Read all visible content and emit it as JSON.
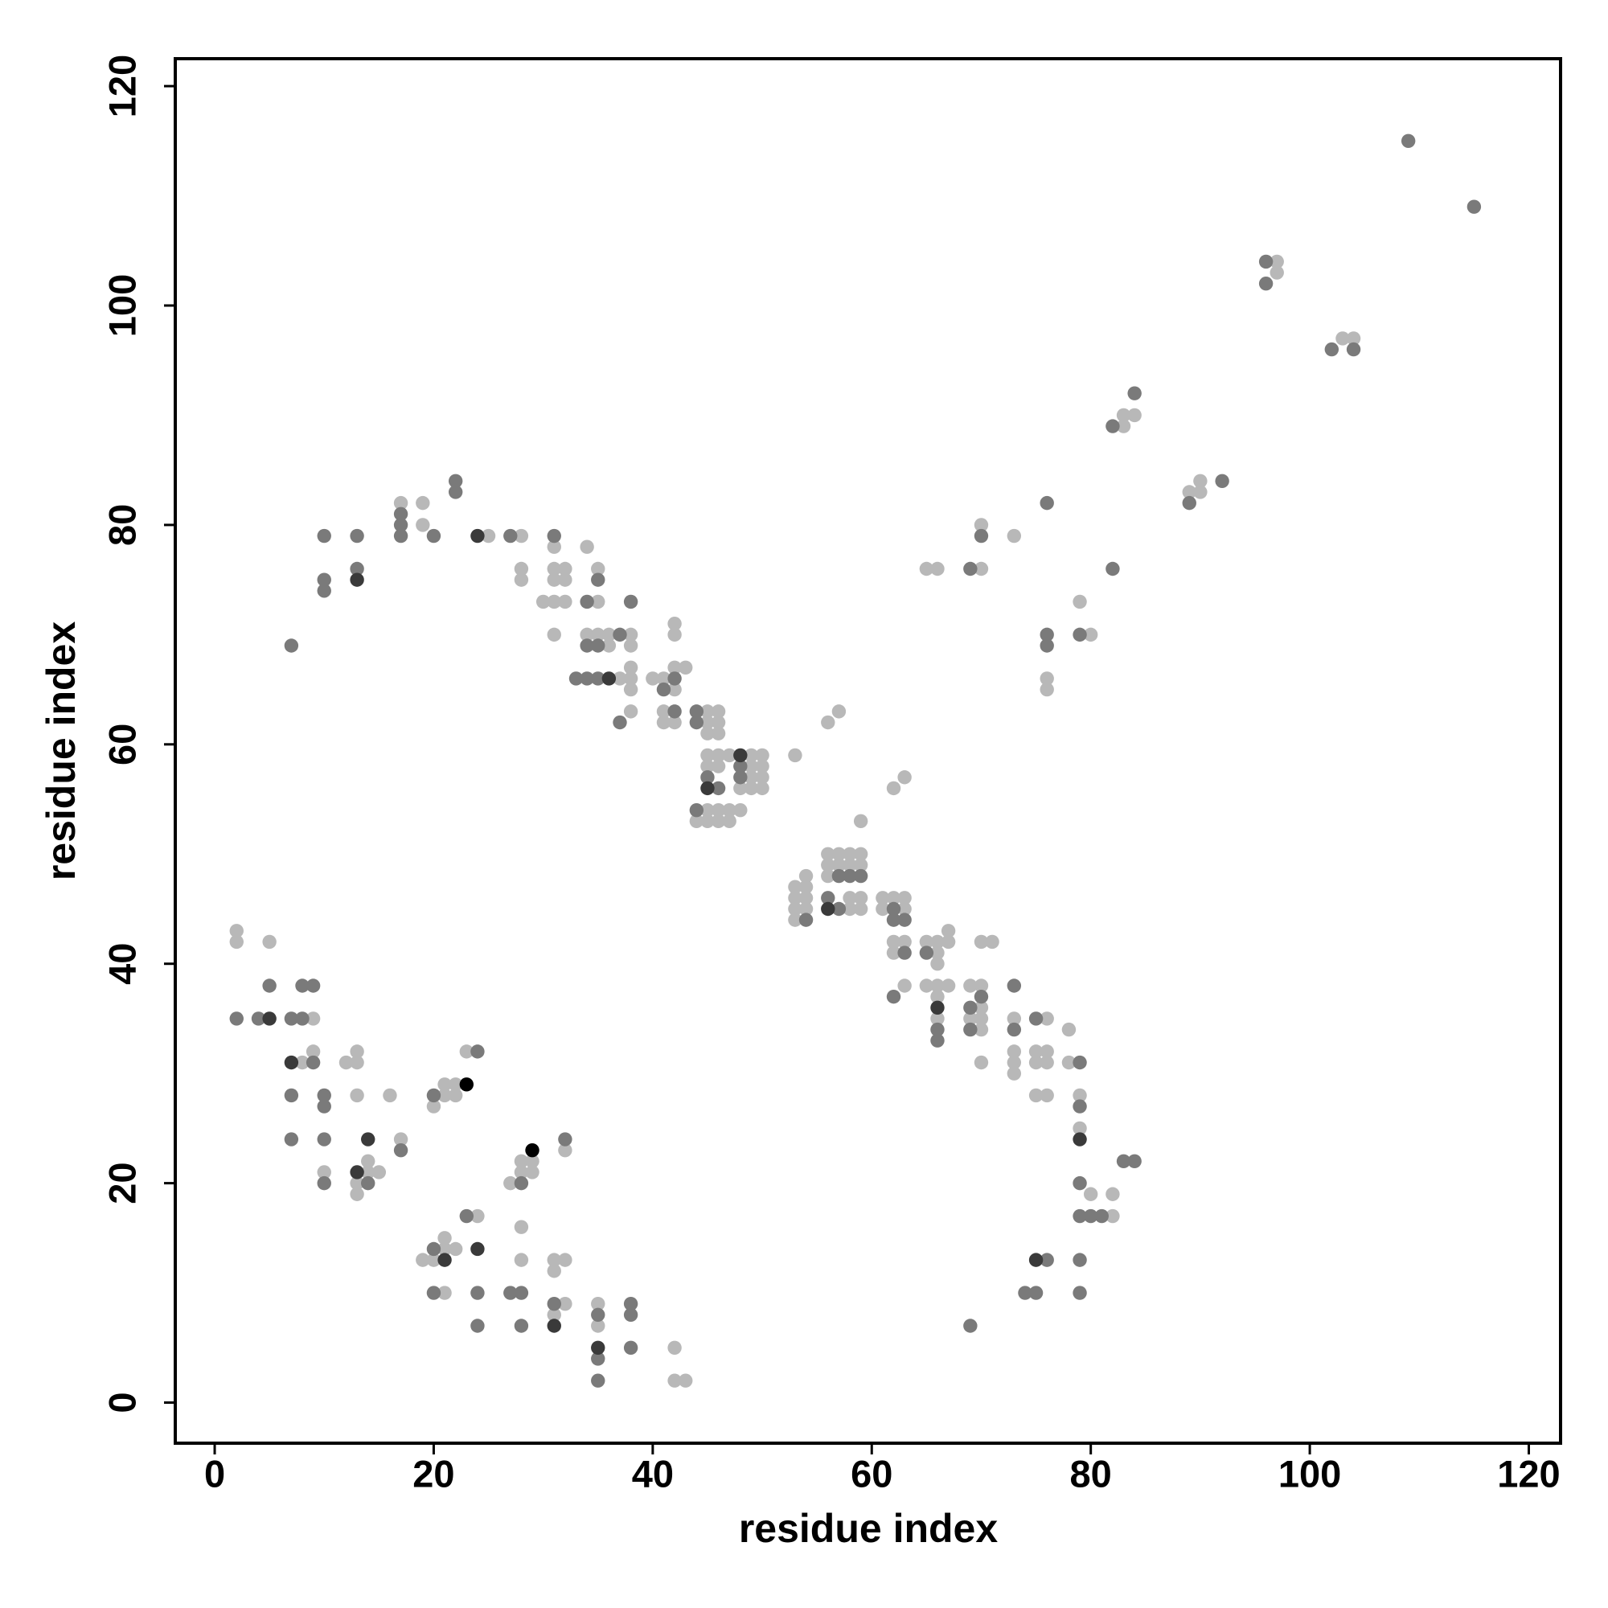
{
  "chart_data": {
    "type": "scatter",
    "xlabel": "residue index",
    "ylabel": "residue index",
    "xlim": [
      -3.6,
      122.9
    ],
    "ylim": [
      -3.7,
      122.5
    ],
    "xticks": [
      0,
      20,
      40,
      60,
      80,
      100,
      120
    ],
    "yticks": [
      0,
      20,
      40,
      60,
      80,
      100,
      120
    ],
    "grid": false,
    "series": [
      {
        "color": "#b8b8b8",
        "x": [
          97,
          97,
          103,
          104,
          83,
          83,
          84,
          89,
          90,
          90,
          73,
          70,
          70,
          65,
          66,
          76,
          76,
          79,
          80,
          56,
          57,
          53,
          62,
          63,
          59,
          56,
          57,
          58,
          59,
          56,
          57,
          58,
          59,
          56,
          58,
          59,
          58,
          59,
          53,
          53,
          53,
          53,
          54,
          54,
          54,
          54,
          61,
          62,
          63,
          61,
          63,
          62,
          63,
          62,
          63,
          65,
          66,
          66,
          66,
          67,
          67,
          66,
          65,
          67,
          66,
          66,
          69,
          70,
          70,
          69,
          70,
          70,
          70,
          70,
          71,
          73,
          73,
          73,
          73,
          76,
          75,
          76,
          75,
          76,
          75,
          76,
          78,
          78,
          79,
          79,
          80,
          82,
          82,
          45,
          46,
          45,
          46,
          45,
          46,
          45,
          46,
          47,
          49,
          50,
          45,
          46,
          49,
          50,
          49,
          50,
          48,
          49,
          50,
          45,
          46,
          47,
          48,
          44,
          45,
          46,
          47,
          42,
          42,
          41,
          40,
          42,
          43,
          42,
          41,
          41,
          42,
          38,
          38,
          38,
          38,
          38,
          38,
          37,
          36,
          35,
          34,
          36,
          35,
          35,
          34,
          31,
          31,
          32,
          31,
          32,
          30,
          31,
          32,
          31,
          28,
          28,
          28,
          25,
          19,
          19,
          17,
          2,
          2,
          5,
          9,
          8,
          9,
          10,
          12,
          13,
          13,
          13,
          16,
          17,
          14,
          14,
          15,
          13,
          13,
          20,
          21,
          22,
          21,
          22,
          23,
          27,
          28,
          29,
          28,
          29,
          32,
          24,
          28,
          19,
          20,
          21,
          21,
          22,
          28,
          31,
          32,
          31,
          21,
          32,
          31,
          35,
          35,
          42,
          42,
          43
        ],
        "values": [
          104,
          103,
          97,
          97,
          89,
          90,
          90,
          83,
          83,
          84,
          79,
          80,
          76,
          76,
          76,
          66,
          65,
          73,
          70,
          62,
          63,
          59,
          56,
          57,
          53,
          50,
          50,
          50,
          50,
          49,
          49,
          49,
          49,
          48,
          46,
          46,
          45,
          45,
          47,
          46,
          45,
          44,
          48,
          47,
          46,
          45,
          46,
          46,
          46,
          45,
          45,
          42,
          42,
          41,
          38,
          42,
          42,
          41,
          40,
          43,
          42,
          38,
          38,
          38,
          37,
          35,
          38,
          38,
          36,
          35,
          35,
          34,
          31,
          42,
          42,
          35,
          32,
          31,
          30,
          35,
          32,
          32,
          31,
          31,
          28,
          28,
          34,
          31,
          28,
          25,
          19,
          19,
          17,
          63,
          63,
          62,
          62,
          61,
          61,
          59,
          59,
          59,
          59,
          59,
          58,
          58,
          58,
          58,
          57,
          57,
          56,
          56,
          56,
          54,
          54,
          54,
          54,
          53,
          53,
          53,
          53,
          71,
          70,
          66,
          66,
          67,
          67,
          65,
          63,
          62,
          62,
          63,
          70,
          69,
          67,
          66,
          65,
          66,
          70,
          70,
          70,
          69,
          73,
          76,
          78,
          78,
          76,
          76,
          75,
          75,
          73,
          73,
          73,
          70,
          79,
          76,
          75,
          79,
          82,
          80,
          82,
          43,
          42,
          42,
          35,
          31,
          32,
          21,
          31,
          31,
          32,
          28,
          28,
          24,
          22,
          21,
          21,
          20,
          19,
          27,
          29,
          29,
          28,
          28,
          32,
          20,
          22,
          22,
          21,
          21,
          23,
          17,
          16,
          13,
          13,
          15,
          14,
          14,
          13,
          13,
          13,
          12,
          10,
          9,
          8,
          9,
          7,
          5,
          2,
          2
        ]
      },
      {
        "color": "#7a7a7a",
        "x": [
          109,
          115,
          96,
          96,
          102,
          104,
          84,
          82,
          89,
          92,
          82,
          76,
          70,
          69,
          76,
          76,
          79,
          57,
          58,
          59,
          56,
          57,
          54,
          62,
          62,
          63,
          63,
          62,
          65,
          66,
          66,
          70,
          69,
          69,
          73,
          73,
          75,
          79,
          79,
          79,
          79,
          80,
          81,
          83,
          84,
          76,
          79,
          74,
          75,
          79,
          69,
          44,
          44,
          48,
          45,
          48,
          46,
          44,
          42,
          41,
          42,
          37,
          37,
          35,
          34,
          35,
          34,
          33,
          34,
          38,
          35,
          31,
          27,
          22,
          22,
          20,
          17,
          17,
          17,
          13,
          13,
          10,
          10,
          10,
          7,
          2,
          4,
          5,
          7,
          8,
          9,
          8,
          9,
          7,
          10,
          10,
          7,
          10,
          10,
          17,
          14,
          20,
          24,
          28,
          32,
          23,
          20,
          20,
          24,
          27,
          28,
          24,
          28,
          31,
          35,
          38,
          38,
          35,
          38,
          35
        ],
        "values": [
          115,
          109,
          104,
          102,
          96,
          96,
          92,
          89,
          82,
          84,
          76,
          82,
          79,
          76,
          70,
          69,
          70,
          48,
          48,
          48,
          46,
          45,
          44,
          45,
          44,
          44,
          41,
          37,
          41,
          34,
          33,
          37,
          36,
          34,
          38,
          34,
          35,
          31,
          27,
          20,
          17,
          17,
          17,
          22,
          22,
          13,
          13,
          10,
          10,
          10,
          7,
          63,
          62,
          58,
          57,
          57,
          56,
          54,
          66,
          65,
          63,
          62,
          70,
          69,
          69,
          66,
          66,
          66,
          73,
          73,
          75,
          79,
          79,
          84,
          83,
          79,
          81,
          80,
          79,
          79,
          76,
          79,
          75,
          74,
          69,
          35,
          35,
          38,
          35,
          38,
          38,
          35,
          31,
          28,
          28,
          27,
          24,
          24,
          20,
          23,
          20,
          28,
          32,
          20,
          24,
          17,
          14,
          10,
          10,
          10,
          10,
          7,
          7,
          9,
          8,
          9,
          8,
          4,
          5,
          2
        ]
      },
      {
        "color": "#3a3a3a",
        "x": [
          56,
          66,
          79,
          75,
          48,
          45,
          36,
          24,
          13,
          5,
          7,
          14,
          13,
          21,
          24,
          31,
          35
        ],
        "values": [
          45,
          36,
          24,
          13,
          59,
          56,
          66,
          79,
          75,
          35,
          31,
          24,
          21,
          13,
          14,
          7,
          5
        ]
      },
      {
        "color": "#000000",
        "x": [
          23,
          29
        ],
        "values": [
          29,
          23
        ]
      }
    ]
  }
}
